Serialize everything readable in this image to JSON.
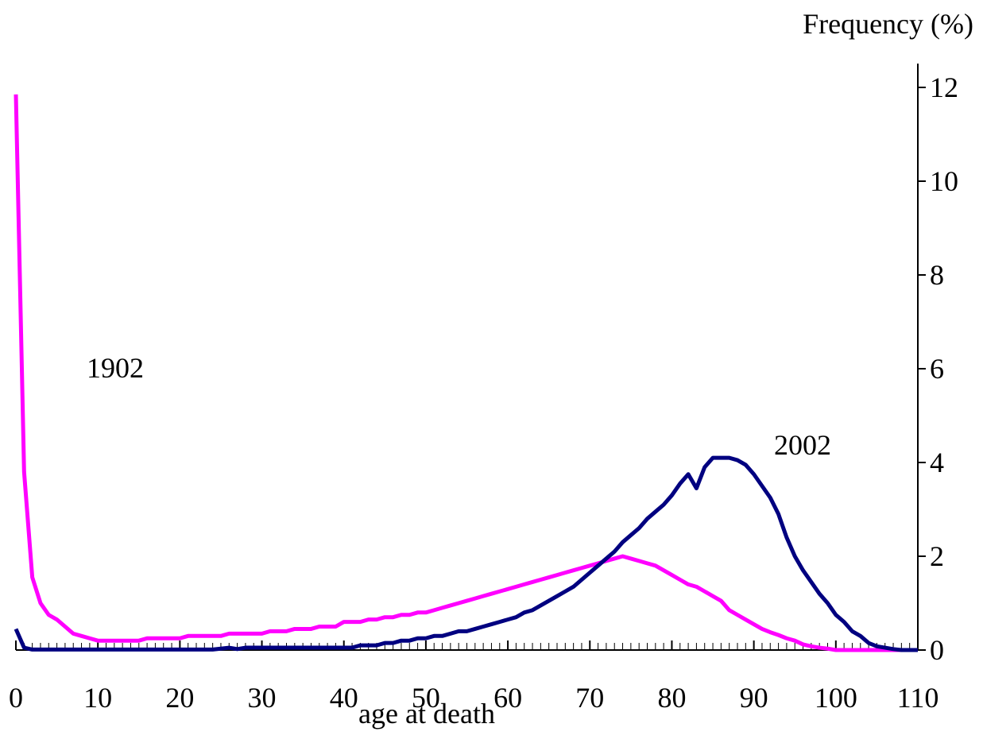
{
  "chart_data": {
    "type": "line",
    "y_axis_title": "Frequency (%)",
    "x_axis_title": "age at death",
    "x": [
      0,
      1,
      2,
      3,
      4,
      5,
      6,
      7,
      8,
      9,
      10,
      11,
      12,
      13,
      14,
      15,
      16,
      17,
      18,
      19,
      20,
      21,
      22,
      23,
      24,
      25,
      26,
      27,
      28,
      29,
      30,
      31,
      32,
      33,
      34,
      35,
      36,
      37,
      38,
      39,
      40,
      41,
      42,
      43,
      44,
      45,
      46,
      47,
      48,
      49,
      50,
      51,
      52,
      53,
      54,
      55,
      56,
      57,
      58,
      59,
      60,
      61,
      62,
      63,
      64,
      65,
      66,
      67,
      68,
      69,
      70,
      71,
      72,
      73,
      74,
      75,
      76,
      77,
      78,
      79,
      80,
      81,
      82,
      83,
      84,
      85,
      86,
      87,
      88,
      89,
      90,
      91,
      92,
      93,
      94,
      95,
      96,
      97,
      98,
      99,
      100,
      101,
      102,
      103,
      104,
      105,
      106,
      107,
      108,
      109,
      110
    ],
    "series": [
      {
        "name": "1902",
        "color": "#ff00ff",
        "values": [
          11.85,
          3.8,
          1.55,
          1.0,
          0.75,
          0.65,
          0.5,
          0.35,
          0.3,
          0.25,
          0.2,
          0.2,
          0.2,
          0.2,
          0.2,
          0.2,
          0.25,
          0.25,
          0.25,
          0.25,
          0.25,
          0.3,
          0.3,
          0.3,
          0.3,
          0.3,
          0.35,
          0.35,
          0.35,
          0.35,
          0.35,
          0.4,
          0.4,
          0.4,
          0.45,
          0.45,
          0.45,
          0.5,
          0.5,
          0.5,
          0.6,
          0.6,
          0.6,
          0.65,
          0.65,
          0.7,
          0.7,
          0.75,
          0.75,
          0.8,
          0.8,
          0.85,
          0.9,
          0.95,
          1.0,
          1.05,
          1.1,
          1.15,
          1.2,
          1.25,
          1.3,
          1.35,
          1.4,
          1.45,
          1.5,
          1.55,
          1.6,
          1.65,
          1.7,
          1.75,
          1.8,
          1.85,
          1.9,
          1.95,
          2.0,
          1.95,
          1.9,
          1.85,
          1.8,
          1.7,
          1.6,
          1.5,
          1.4,
          1.35,
          1.25,
          1.15,
          1.05,
          0.85,
          0.75,
          0.65,
          0.55,
          0.45,
          0.38,
          0.32,
          0.25,
          0.2,
          0.12,
          0.08,
          0.05,
          0.03,
          0,
          0,
          0,
          0,
          0,
          0,
          0,
          0,
          0,
          0,
          0
        ]
      },
      {
        "name": "2002",
        "color": "#000080",
        "values": [
          0.45,
          0.05,
          0.01,
          0.01,
          0.01,
          0.01,
          0.01,
          0.01,
          0.01,
          0.01,
          0.01,
          0.01,
          0.01,
          0.01,
          0.01,
          0.01,
          0.01,
          0.01,
          0.01,
          0.01,
          0.01,
          0.01,
          0.01,
          0.01,
          0.01,
          0.03,
          0.05,
          0.02,
          0.05,
          0.05,
          0.05,
          0.05,
          0.05,
          0.05,
          0.05,
          0.05,
          0.05,
          0.05,
          0.05,
          0.05,
          0.05,
          0.05,
          0.1,
          0.1,
          0.1,
          0.15,
          0.15,
          0.2,
          0.2,
          0.25,
          0.25,
          0.3,
          0.3,
          0.35,
          0.4,
          0.4,
          0.45,
          0.5,
          0.55,
          0.6,
          0.65,
          0.7,
          0.8,
          0.85,
          0.95,
          1.05,
          1.15,
          1.25,
          1.35,
          1.5,
          1.65,
          1.8,
          1.95,
          2.1,
          2.3,
          2.45,
          2.6,
          2.8,
          2.95,
          3.1,
          3.3,
          3.55,
          3.75,
          3.45,
          3.9,
          4.1,
          4.1,
          4.1,
          4.05,
          3.95,
          3.75,
          3.5,
          3.25,
          2.9,
          2.4,
          2.0,
          1.7,
          1.45,
          1.2,
          1.0,
          0.75,
          0.6,
          0.4,
          0.3,
          0.15,
          0.08,
          0.05,
          0.02,
          0,
          0,
          0
        ]
      }
    ],
    "xlim": [
      0,
      110
    ],
    "xticks": [
      0,
      10,
      20,
      30,
      40,
      50,
      60,
      70,
      80,
      90,
      100,
      110
    ],
    "ylim": [
      0,
      12
    ],
    "yticks": [
      0,
      2,
      4,
      6,
      8,
      10,
      12
    ],
    "y_axis_side": "right",
    "grid": false
  }
}
